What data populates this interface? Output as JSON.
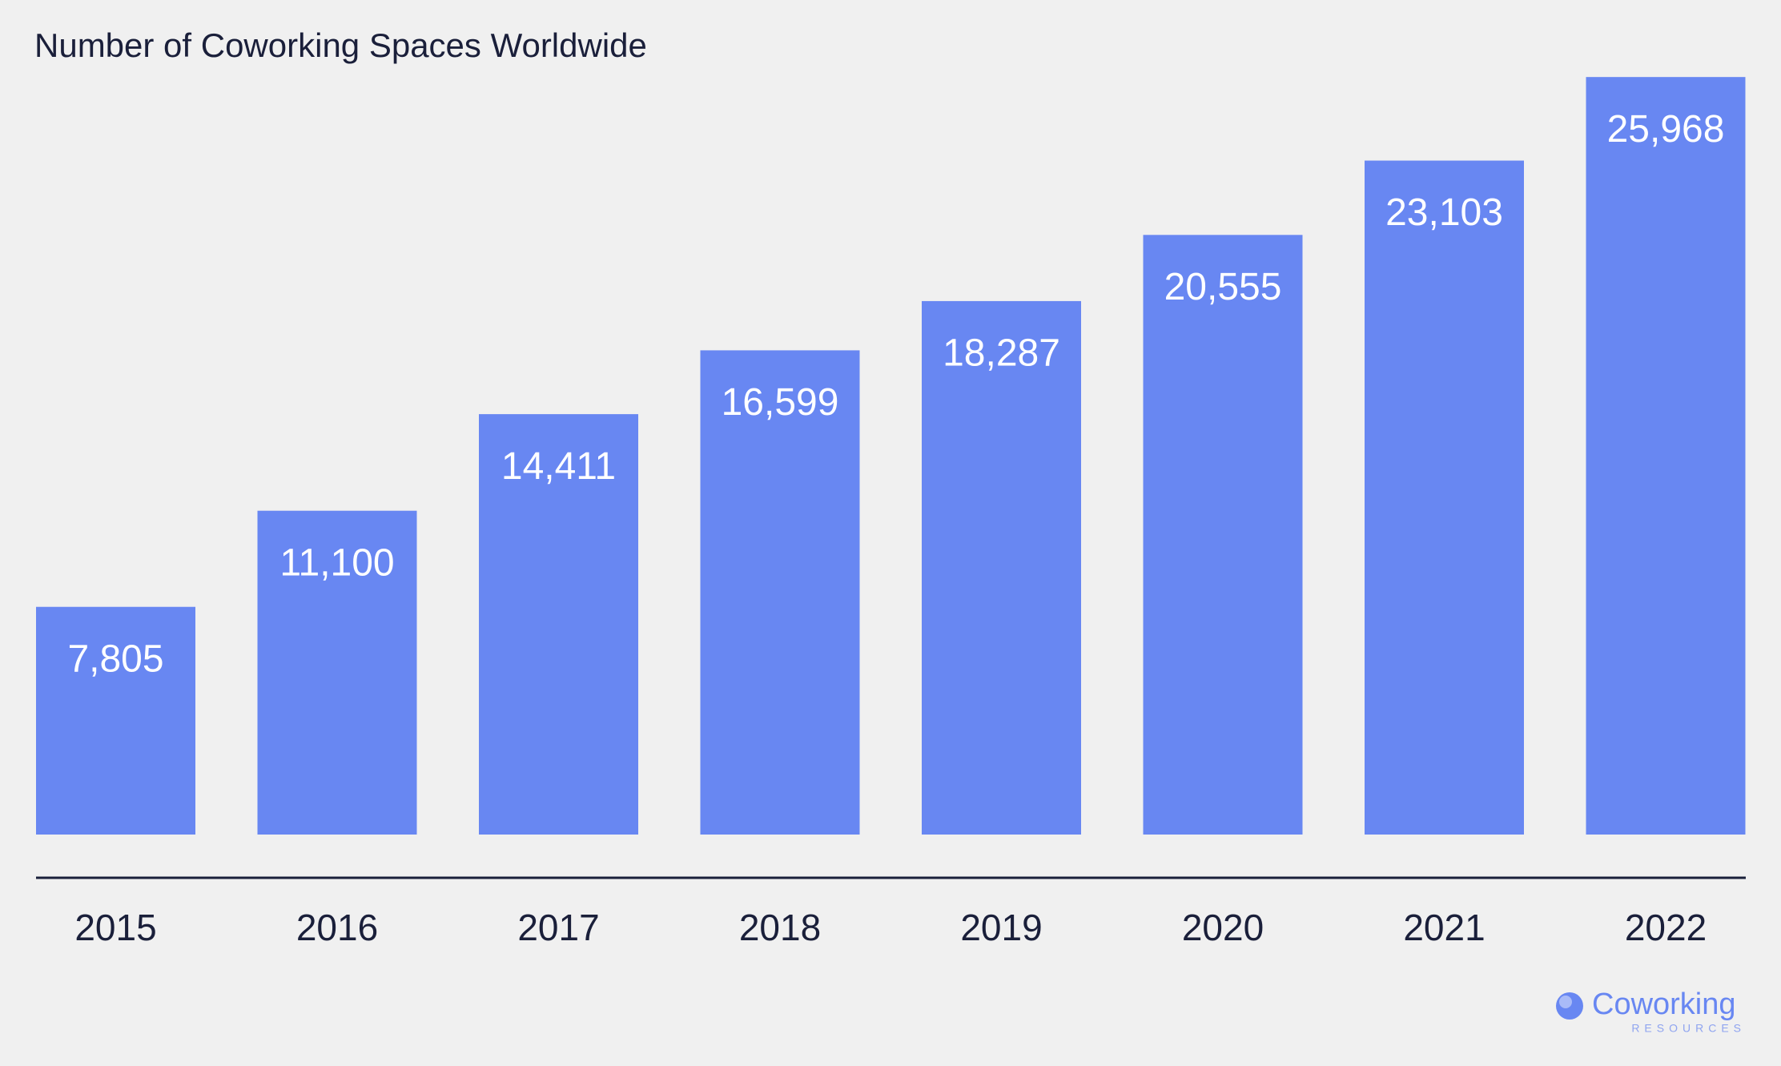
{
  "chart_data": {
    "type": "bar",
    "title": "Number of Coworking Spaces Worldwide",
    "categories": [
      "2015",
      "2016",
      "2017",
      "2018",
      "2019",
      "2020",
      "2021",
      "2022"
    ],
    "values": [
      7805,
      11100,
      14411,
      16599,
      18287,
      20555,
      23103,
      25968
    ],
    "value_labels": [
      "7,805",
      "11,100",
      "14,411",
      "16,599",
      "18,287",
      "20,555",
      "23,103",
      "25,968"
    ],
    "color": "#6887f2",
    "ylim": [
      0,
      26000
    ]
  },
  "logo": {
    "name": "Coworking",
    "tagline": "RESOURCES"
  }
}
